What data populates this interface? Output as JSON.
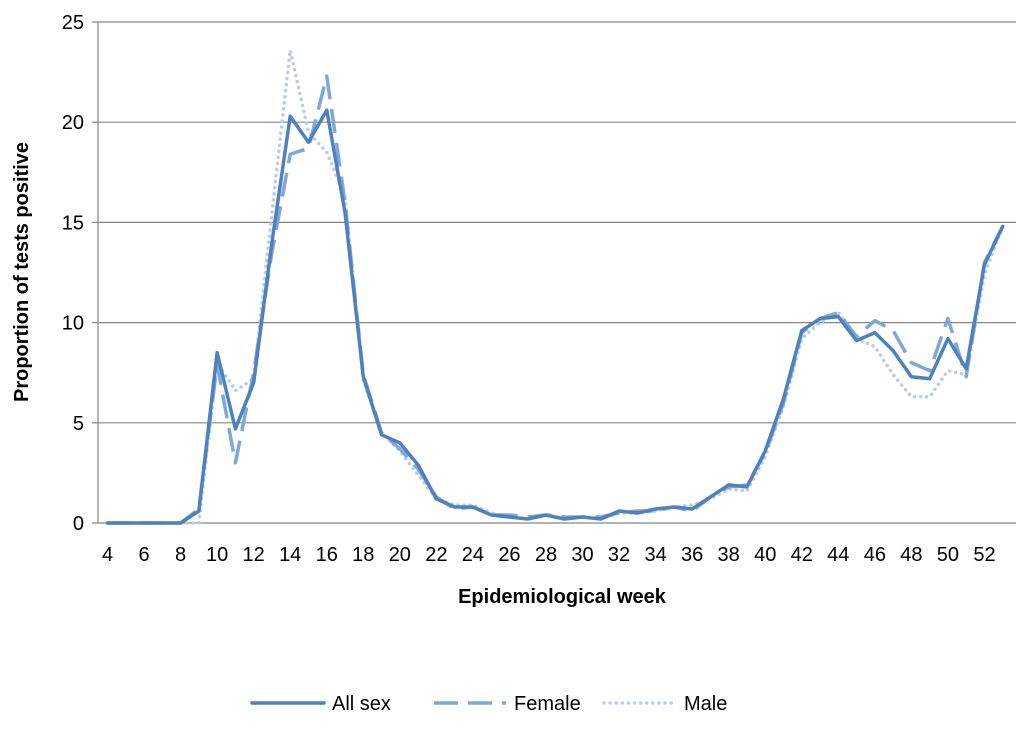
{
  "chart_data": {
    "type": "line",
    "title": "",
    "xlabel": "Epidemiological week",
    "ylabel": "Proportion of tests positive",
    "xlim": [
      4,
      53
    ],
    "ylim": [
      0,
      25
    ],
    "y_ticks": [
      0,
      5,
      10,
      15,
      20,
      25
    ],
    "x_ticks": [
      4,
      6,
      8,
      10,
      12,
      14,
      16,
      18,
      20,
      22,
      24,
      26,
      28,
      30,
      32,
      34,
      36,
      38,
      40,
      42,
      44,
      46,
      48,
      50,
      52
    ],
    "grid": "horizontal",
    "legend_position": "bottom",
    "x": [
      4,
      5,
      6,
      7,
      8,
      9,
      10,
      11,
      12,
      13,
      14,
      15,
      16,
      17,
      18,
      19,
      20,
      21,
      22,
      23,
      24,
      25,
      26,
      27,
      28,
      29,
      30,
      31,
      32,
      33,
      34,
      35,
      36,
      37,
      38,
      39,
      40,
      41,
      42,
      43,
      44,
      45,
      46,
      47,
      48,
      49,
      50,
      51,
      52,
      53
    ],
    "series": [
      {
        "name": "All sex",
        "color": "#4f81bd",
        "style": "solid",
        "values": [
          0,
          0,
          0,
          0,
          0,
          0.6,
          8.5,
          4.7,
          7.0,
          14.0,
          20.3,
          19.0,
          20.6,
          15.5,
          7.3,
          4.4,
          4.0,
          2.9,
          1.2,
          0.8,
          0.8,
          0.4,
          0.3,
          0.2,
          0.4,
          0.2,
          0.3,
          0.2,
          0.6,
          0.5,
          0.7,
          0.8,
          0.7,
          1.3,
          1.9,
          1.8,
          3.6,
          6.2,
          9.6,
          10.2,
          10.3,
          9.1,
          9.5,
          8.6,
          7.3,
          7.2,
          9.2,
          7.7,
          12.9,
          14.8
        ]
      },
      {
        "name": "Female",
        "color": "#7fa7d8",
        "style": "dashed",
        "values": [
          0,
          0,
          0,
          0,
          0,
          0.7,
          7.9,
          3.0,
          7.5,
          13.5,
          18.4,
          18.7,
          22.3,
          16.0,
          7.4,
          4.5,
          3.7,
          2.7,
          1.3,
          0.7,
          0.8,
          0.4,
          0.4,
          0.3,
          0.4,
          0.3,
          0.3,
          0.3,
          0.5,
          0.6,
          0.6,
          0.8,
          0.6,
          1.3,
          1.8,
          1.9,
          3.5,
          6.0,
          9.5,
          10.2,
          10.5,
          9.3,
          10.1,
          9.6,
          8.0,
          7.6,
          10.2,
          7.3,
          13.0,
          14.8
        ]
      },
      {
        "name": "Male",
        "color": "#b8cde9",
        "style": "dotted",
        "values": [
          0,
          0,
          0,
          0,
          0,
          0,
          8.0,
          6.6,
          7.2,
          15.5,
          23.6,
          19.5,
          18.5,
          16.3,
          7.1,
          4.5,
          3.6,
          2.4,
          1.2,
          0.9,
          0.9,
          0.5,
          0.3,
          0.2,
          0.4,
          0.2,
          0.3,
          0.2,
          0.5,
          0.5,
          0.6,
          0.8,
          0.9,
          1.2,
          1.7,
          1.6,
          3.3,
          5.8,
          9.2,
          10.0,
          10.5,
          9.2,
          8.8,
          7.4,
          6.3,
          6.3,
          7.6,
          7.4,
          12.4,
          14.8
        ]
      }
    ]
  }
}
